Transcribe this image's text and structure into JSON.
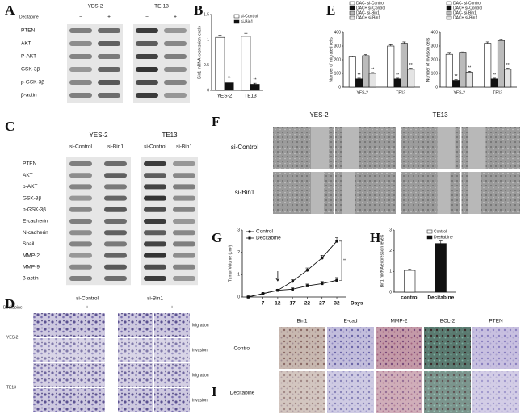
{
  "panels": {
    "A": {
      "letter": "A",
      "groups": [
        "YES-2",
        "TE-13"
      ],
      "treatment": "Decitabine",
      "signs": [
        "−",
        "+",
        "−",
        "+"
      ],
      "rows": [
        "PTEN",
        "AKT",
        "P-AKT",
        "GSK-3β",
        "p-GSK-3β",
        "β-actin"
      ]
    },
    "C": {
      "letter": "C",
      "groups": [
        "YES-2",
        "TE13"
      ],
      "lanes": [
        "si-Control",
        "si-Bin1",
        "si-Control",
        "si-Bin1"
      ],
      "rows": [
        "PTEN",
        "AKT",
        "p-AKT",
        "GSK-3β",
        "p-GSK-3β",
        "E-cadherin",
        "N-cadherin",
        "Snail",
        "MMP-2",
        "MMP-9",
        "β-actin"
      ]
    },
    "D": {
      "letter": "D",
      "groups": [
        "si-Control",
        "si-Bin1"
      ],
      "treatment": "Decitabine",
      "signs": [
        "−",
        "+",
        "−",
        "+"
      ],
      "cell_lines": [
        "YES-2",
        "TE13"
      ],
      "assays": [
        "Migration",
        "Invasion",
        "Migration",
        "Invasion"
      ]
    },
    "F": {
      "letter": "F",
      "groups": [
        "YES-2",
        "TE13"
      ],
      "rows": [
        "si-Control",
        "si-Bin1"
      ]
    },
    "I": {
      "letter": "I",
      "columns": [
        "Bin1",
        "E-cad",
        "MMP-2",
        "BCL-2",
        "PTEN"
      ],
      "rows": [
        "Control",
        "Decitabine"
      ]
    }
  },
  "chart_data": [
    {
      "type": "bar",
      "panel_label": "B",
      "y_label": "Bin1 mRNA expression levels",
      "categories": [
        "YES-2",
        "TE13"
      ],
      "series": [
        {
          "name": "si-Control",
          "color": "#ffffff",
          "values": [
            1.05,
            1.07
          ],
          "errors": [
            0.04,
            0.06
          ]
        },
        {
          "name": "si-Bin1",
          "color": "#111111",
          "values": [
            0.15,
            0.12
          ],
          "errors": [
            0.02,
            0.02
          ]
        }
      ],
      "ylim": [
        0,
        1.5
      ],
      "yticks": [
        0,
        0.5,
        1,
        1.5
      ],
      "annotation": "**",
      "legend": "top-right"
    },
    {
      "type": "bar",
      "panel_label": "E",
      "y_label": "Number of migrated cells",
      "categories": [
        "YES-2",
        "TE13"
      ],
      "series": [
        {
          "name": "DAC- si-Control",
          "color": "#ffffff",
          "values": [
            220,
            300
          ],
          "errors": [
            8,
            10
          ]
        },
        {
          "name": "DAC+ si-Control",
          "color": "#111111",
          "values": [
            60,
            60
          ],
          "errors": [
            5,
            5
          ]
        },
        {
          "name": "DAC- si-Bin1",
          "color": "#bbbbbb",
          "values": [
            230,
            320
          ],
          "errors": [
            8,
            10
          ]
        },
        {
          "name": "DAC+ si-Bin1",
          "color": "#e4e4e4",
          "values": [
            100,
            130
          ],
          "errors": [
            6,
            8
          ]
        }
      ],
      "ylim": [
        0,
        400
      ],
      "yticks": [
        0,
        100,
        200,
        300,
        400
      ],
      "annotation": "**",
      "legend": "top"
    },
    {
      "type": "bar",
      "y_label": "Number of invasion cells",
      "categories": [
        "YES-2",
        "TE13"
      ],
      "series": [
        {
          "name": "DAC- si-Control",
          "color": "#ffffff",
          "values": [
            240,
            320
          ],
          "errors": [
            8,
            10
          ]
        },
        {
          "name": "DAC+ si-Control",
          "color": "#111111",
          "values": [
            50,
            60
          ],
          "errors": [
            5,
            5
          ]
        },
        {
          "name": "DAC- si-Bin1",
          "color": "#bbbbbb",
          "values": [
            250,
            340
          ],
          "errors": [
            8,
            10
          ]
        },
        {
          "name": "DAC+ si-Bin1",
          "color": "#e4e4e4",
          "values": [
            110,
            130
          ],
          "errors": [
            6,
            8
          ]
        }
      ],
      "ylim": [
        0,
        400
      ],
      "yticks": [
        0,
        100,
        200,
        300,
        400
      ],
      "annotation": "**",
      "legend": "top"
    },
    {
      "type": "line",
      "panel_label": "G",
      "y_label": "Tumor Volume (cm³)",
      "x_label": "Days",
      "x": [
        2,
        7,
        12,
        17,
        22,
        27,
        32
      ],
      "series": [
        {
          "name": "Control",
          "color": "#111111",
          "values": [
            0,
            0.15,
            0.3,
            0.7,
            1.2,
            1.75,
            2.5
          ],
          "errors": [
            0,
            0.03,
            0.05,
            0.08,
            0.1,
            0.12,
            0.15
          ]
        },
        {
          "name": "Decitabine",
          "color": "#111111",
          "values": [
            0,
            0.15,
            0.3,
            0.35,
            0.5,
            0.6,
            0.75
          ],
          "errors": [
            0,
            0.03,
            0.05,
            0.06,
            0.08,
            0.1,
            0.12
          ]
        }
      ],
      "xlim": [
        0,
        35
      ],
      "xticks": [
        7,
        12,
        17,
        22,
        27,
        32
      ],
      "ylim": [
        0,
        3
      ],
      "yticks": [
        0,
        1,
        2,
        3
      ],
      "annotation": "**",
      "legend": "top-left"
    },
    {
      "type": "bar",
      "panel_label": "H",
      "y_label": "Bin1 mRNA expression levels",
      "categories": [
        "control",
        "Decitabine"
      ],
      "series": [
        {
          "name": "Control",
          "color": "#ffffff",
          "values": [
            1.05,
            null
          ],
          "errors": [
            0.06,
            null
          ]
        },
        {
          "name": "Decitabine",
          "color": "#111111",
          "values": [
            null,
            2.35
          ],
          "errors": [
            null,
            0.12
          ]
        }
      ],
      "ylim": [
        0,
        3
      ],
      "yticks": [
        0,
        1,
        2,
        3
      ],
      "annotation": "**",
      "legend": "top-right"
    }
  ]
}
